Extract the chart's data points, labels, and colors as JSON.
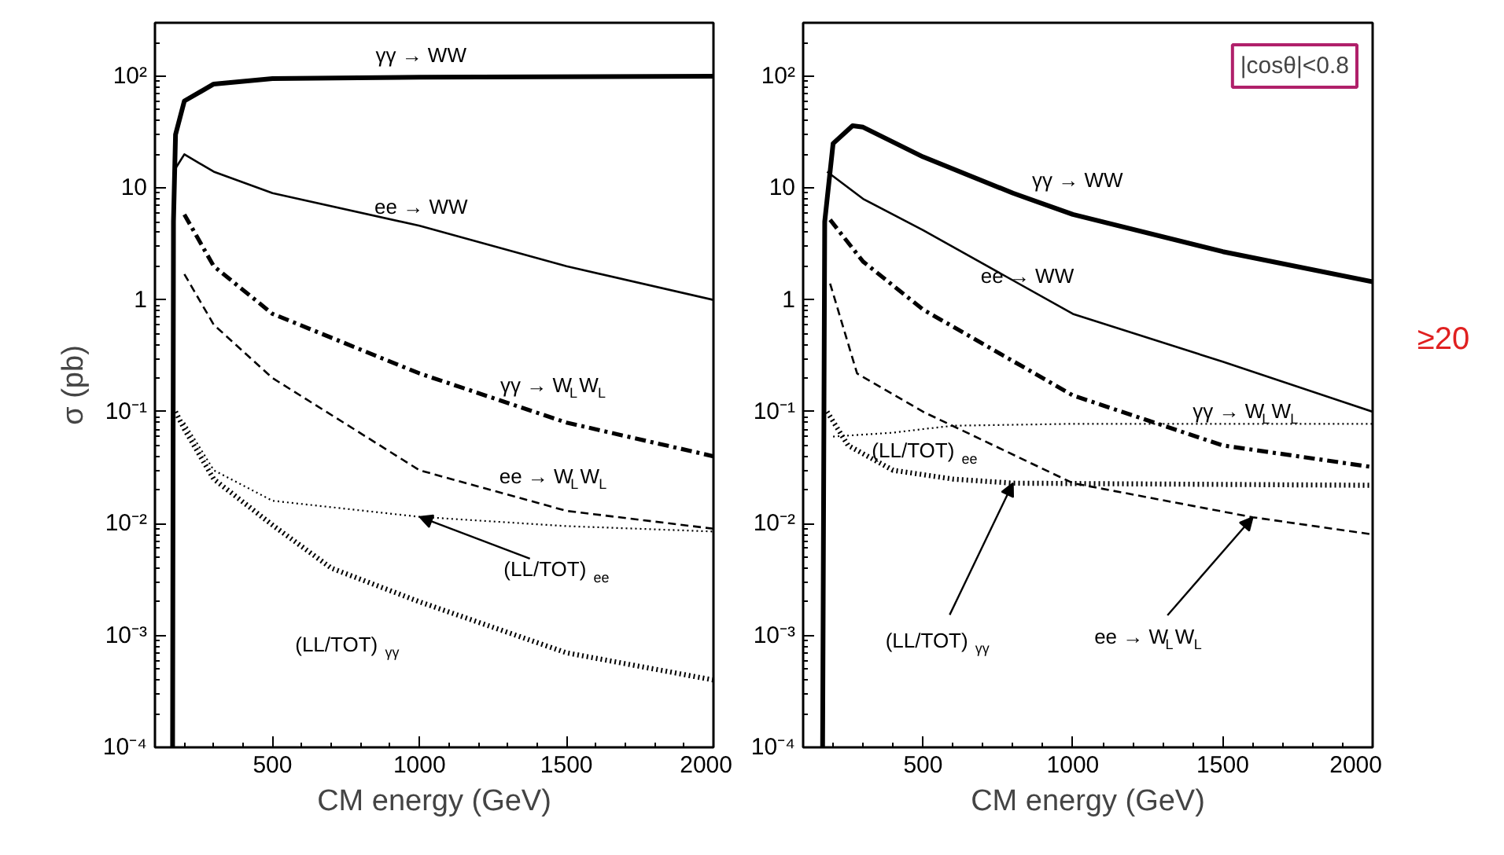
{
  "chart_data": [
    {
      "type": "line",
      "xlabel": "CM energy (GeV)",
      "ylabel": "σ (pb)",
      "log": "y",
      "xlim": [
        100,
        2000
      ],
      "ylim": [
        0.0001,
        300
      ],
      "xticks": [
        500,
        1000,
        1500,
        2000
      ],
      "yticks": [
        {
          "value": 0.0001,
          "label": "10⁻⁴"
        },
        {
          "value": 0.001,
          "label": "10⁻³"
        },
        {
          "value": 0.01,
          "label": "10⁻²"
        },
        {
          "value": 0.1,
          "label": "10⁻¹"
        },
        1,
        10,
        {
          "value": 100,
          "label": "10²"
        }
      ],
      "series": [
        {
          "name": "γγ → WW",
          "color": "#000000",
          "line_style": "solid",
          "x": [
            160,
            163,
            170,
            200,
            300,
            500,
            1000,
            2000
          ],
          "values": [
            0.0001,
            5,
            30,
            60,
            85,
            95,
            98,
            100
          ]
        },
        {
          "name": "ee → WW",
          "color": "#000000",
          "line_style": "solid",
          "x": [
            170,
            200,
            300,
            500,
            1000,
            1500,
            2000
          ],
          "values": [
            15,
            20,
            14,
            9,
            4.6,
            2,
            1
          ]
        },
        {
          "name": "γγ → W$_{L}$W$_{L}$",
          "color": "#000000",
          "line_style": "dashdot",
          "x": [
            200,
            300,
            500,
            1000,
            1500,
            2000
          ],
          "values": [
            5.8,
            2,
            0.75,
            0.22,
            0.08,
            0.04
          ]
        },
        {
          "name": "ee → W$_{L}$W$_{L}$",
          "color": "#000000",
          "line_style": "dashed",
          "x": [
            200,
            300,
            500,
            1000,
            1500,
            2000
          ],
          "values": [
            1.7,
            0.6,
            0.2,
            0.03,
            0.013,
            0.009
          ]
        },
        {
          "name": "(LL/TOT)$_{ee}$",
          "color": "#000000",
          "line_style": "dotted",
          "x": [
            200,
            300,
            500,
            1000,
            1500,
            2000
          ],
          "values": [
            0.08,
            0.03,
            0.016,
            0.0115,
            0.0095,
            0.0085
          ]
        },
        {
          "name": "(LL/TOT)$_{γγ}$",
          "color": "#000000",
          "line_style": "dotted",
          "x": [
            170,
            200,
            300,
            500,
            700,
            1000,
            1500,
            2000
          ],
          "values": [
            0.1,
            0.07,
            0.025,
            0.0097,
            0.004,
            0.002,
            0.0007,
            0.0004
          ]
        }
      ]
    },
    {
      "type": "line",
      "xlabel": "CM energy (GeV)",
      "log": "y",
      "xlim": [
        100,
        2000
      ],
      "ylim": [
        0.0001,
        300
      ],
      "xticks": [
        500,
        1000,
        1500,
        2000
      ],
      "yticks": [
        {
          "value": 0.0001,
          "label": "10⁻⁴"
        },
        {
          "value": 0.001,
          "label": "10⁻³"
        },
        {
          "value": 0.01,
          "label": "10⁻²"
        },
        {
          "value": 0.1,
          "label": "10⁻¹"
        },
        1,
        10,
        {
          "value": 100,
          "label": "10²"
        }
      ],
      "annotations": [
        "|cosθ|<0.8",
        "≥20"
      ],
      "series": [
        {
          "name": "γγ → WW",
          "color": "#000000",
          "line_style": "solid",
          "x": [
            165,
            172,
            200,
            265,
            300,
            500,
            800,
            1000,
            1500,
            2000
          ],
          "values": [
            0.0001,
            5,
            25,
            36,
            35,
            19,
            9,
            5.8,
            2.7,
            1.45
          ]
        },
        {
          "name": "ee → WW",
          "color": "#000000",
          "line_style": "solid",
          "x": [
            180,
            300,
            500,
            1000,
            1500,
            2000
          ],
          "values": [
            14,
            8,
            4.2,
            0.75,
            0.28,
            0.1
          ]
        },
        {
          "name": "γγ → W$_{L}$W$_{L}$",
          "color": "#000000",
          "line_style": "dashdot",
          "x": [
            190,
            300,
            500,
            1000,
            1500,
            2000
          ],
          "values": [
            5.2,
            2.2,
            0.82,
            0.14,
            0.05,
            0.032
          ]
        },
        {
          "name": "ee → W$_{L}$W$_{L}$",
          "color": "#000000",
          "line_style": "dashed",
          "x": [
            190,
            280,
            500,
            1000,
            1600,
            2000
          ],
          "values": [
            1.4,
            0.22,
            0.1,
            0.023,
            0.0114,
            0.008
          ]
        },
        {
          "name": "(LL/TOT)$_{ee}$",
          "color": "#000000",
          "line_style": "dotted",
          "x": [
            200,
            400,
            500,
            600,
            1000,
            2000
          ],
          "values": [
            0.06,
            0.065,
            0.07,
            0.075,
            0.078,
            0.078
          ]
        },
        {
          "name": "(LL/TOT)$_{γγ}$",
          "color": "#000000",
          "line_style": "dotted",
          "x": [
            180,
            250,
            400,
            600,
            800,
            2000
          ],
          "values": [
            0.1,
            0.05,
            0.03,
            0.025,
            0.023,
            0.022
          ]
        }
      ]
    }
  ]
}
